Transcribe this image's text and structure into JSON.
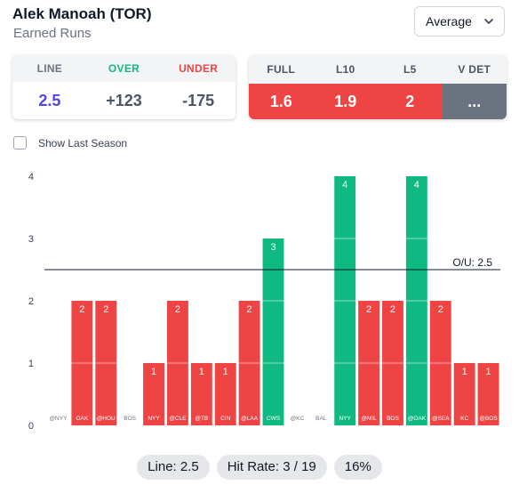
{
  "header": {
    "player": "Alek Manoah (TOR)",
    "stat": "Earned Runs"
  },
  "dropdown": {
    "selected": "Average"
  },
  "line_card": {
    "headers": [
      "LINE",
      "OVER",
      "UNDER"
    ],
    "values": [
      "2.5",
      "+123",
      "-175"
    ]
  },
  "splits_card": {
    "headers": [
      "FULL",
      "L10",
      "L5",
      "V DET"
    ],
    "values": [
      "1.6",
      "1.9",
      "2",
      "..."
    ]
  },
  "checkbox": {
    "label": "Show Last Season",
    "checked": false
  },
  "chart_data": {
    "type": "bar",
    "categories": [
      "@NYY",
      "OAK",
      "@HOU",
      "BOS",
      "NYY",
      "@CLE",
      "@TB",
      "CIN",
      "@LAA",
      "CWS",
      "@KC",
      "BAL",
      "NYY",
      "@MIL",
      "BOS",
      "@OAK",
      "@SEA",
      "KC",
      "@BOS"
    ],
    "values": [
      0,
      2,
      2,
      0,
      1,
      2,
      1,
      1,
      2,
      3,
      0,
      0,
      4,
      2,
      2,
      4,
      2,
      1,
      1
    ],
    "ylim": [
      0,
      4
    ],
    "yticks": [
      "0",
      "1",
      "2",
      "3",
      "4"
    ],
    "line_value": 2.5,
    "line_label": "O/U: 2.5",
    "colors": {
      "over": "#10b981",
      "under": "#ef4444"
    }
  },
  "footer": {
    "line": "Line: 2.5",
    "hit_rate": "Hit Rate: 3 / 19",
    "pct": "16%"
  }
}
